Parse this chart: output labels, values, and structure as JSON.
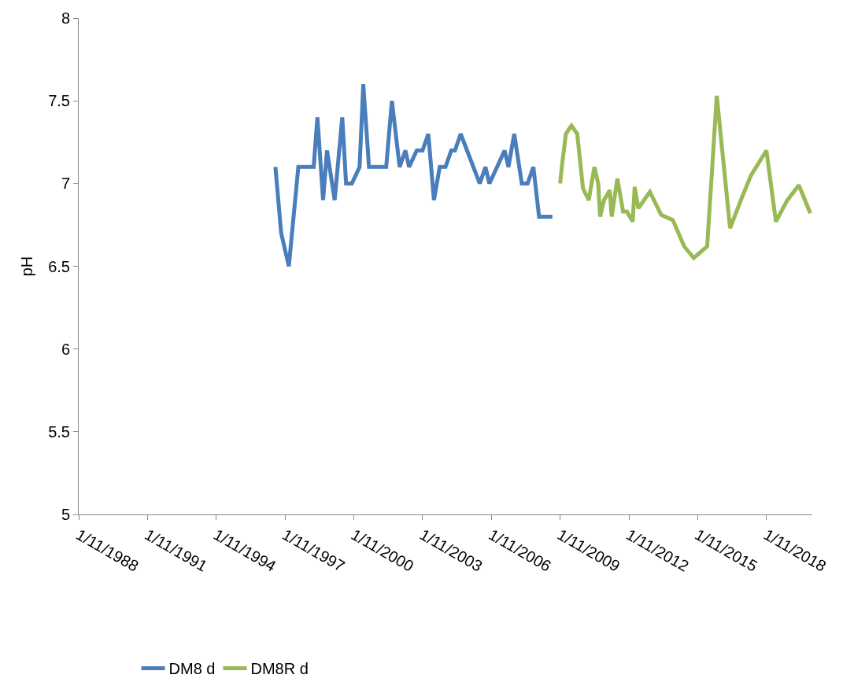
{
  "chart_data": {
    "type": "line",
    "ylabel": "pH",
    "xlim": [
      "1988-11-01",
      "2020-11-01"
    ],
    "xticks": [
      {
        "value": "1988-11-01",
        "label": "1/11/1988"
      },
      {
        "value": "1991-11-01",
        "label": "1/11/1991"
      },
      {
        "value": "1994-11-01",
        "label": "1/11/1994"
      },
      {
        "value": "1997-11-01",
        "label": "1/11/1997"
      },
      {
        "value": "2000-11-01",
        "label": "1/11/2000"
      },
      {
        "value": "2003-11-01",
        "label": "1/11/2003"
      },
      {
        "value": "2006-11-01",
        "label": "1/11/2006"
      },
      {
        "value": "2009-11-01",
        "label": "1/11/2009"
      },
      {
        "value": "2012-11-01",
        "label": "1/11/2012"
      },
      {
        "value": "2015-11-01",
        "label": "1/11/2015"
      },
      {
        "value": "2018-11-01",
        "label": "1/11/2018"
      }
    ],
    "ylim": [
      5,
      8
    ],
    "yticks": [
      5,
      5.5,
      6,
      6.5,
      7,
      7.5,
      8
    ],
    "legend": "bottom",
    "line_style": "solid",
    "series": [
      {
        "name": "DM8 d",
        "color": "#4a7ebb",
        "x": [
          "1997-06",
          "1997-09",
          "1998-01",
          "1998-06",
          "1999-02",
          "1999-04",
          "1999-07",
          "1999-09",
          "2000-01",
          "2000-05",
          "2000-07",
          "2000-10",
          "2001-02",
          "2001-04",
          "2001-07",
          "2002-04",
          "2002-07",
          "2002-11",
          "2003-02",
          "2003-04",
          "2003-08",
          "2003-11",
          "2004-02",
          "2004-05",
          "2004-08",
          "2004-11",
          "2005-02",
          "2005-04",
          "2005-07",
          "2006-05",
          "2006-08",
          "2006-10",
          "2007-02",
          "2007-06",
          "2007-08",
          "2007-11",
          "2008-03",
          "2008-06",
          "2008-09",
          "2008-12",
          "2009-07"
        ],
        "values": [
          7.1,
          6.7,
          6.5,
          7.1,
          7.1,
          7.4,
          6.9,
          7.2,
          6.9,
          7.4,
          7.0,
          7.0,
          7.1,
          7.6,
          7.1,
          7.1,
          7.5,
          7.1,
          7.2,
          7.1,
          7.2,
          7.2,
          7.3,
          6.9,
          7.1,
          7.1,
          7.2,
          7.2,
          7.3,
          7.0,
          7.1,
          7.0,
          7.1,
          7.2,
          7.1,
          7.3,
          7.0,
          7.0,
          7.1,
          6.8,
          6.8
        ]
      },
      {
        "name": "DM8R d",
        "color": "#98b954",
        "x": [
          "2009-11",
          "2009-12",
          "2010-02",
          "2010-05",
          "2010-08",
          "2010-11",
          "2011-02",
          "2011-05",
          "2011-07",
          "2011-08",
          "2011-10",
          "2012-01",
          "2012-02",
          "2012-05",
          "2012-08",
          "2012-10",
          "2013-01",
          "2013-02",
          "2013-04",
          "2013-10",
          "2014-04",
          "2014-10",
          "2015-04",
          "2015-09",
          "2016-04",
          "2016-09",
          "2017-04",
          "2017-10",
          "2018-03",
          "2018-11",
          "2019-04",
          "2019-10",
          "2020-04",
          "2020-10"
        ],
        "values": [
          7.0,
          7.11,
          7.3,
          7.35,
          7.3,
          6.97,
          6.9,
          7.1,
          7.0,
          6.8,
          6.9,
          6.96,
          6.8,
          7.03,
          6.83,
          6.83,
          6.77,
          6.98,
          6.85,
          6.95,
          6.81,
          6.78,
          6.62,
          6.55,
          6.62,
          7.53,
          6.73,
          6.91,
          7.05,
          7.2,
          6.77,
          6.9,
          6.99,
          6.82
        ]
      }
    ]
  }
}
